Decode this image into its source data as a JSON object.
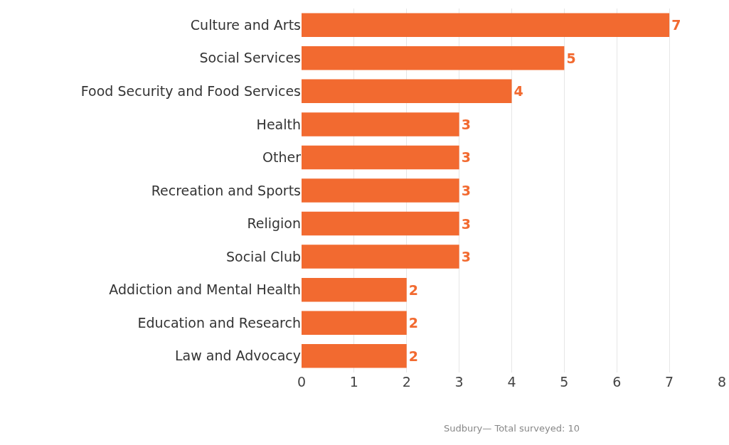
{
  "chart_data": {
    "type": "bar",
    "orientation": "horizontal",
    "categories": [
      "Culture and Arts",
      "Social Services",
      "Food Security and Food Services",
      "Health",
      "Other",
      "Recreation and Sports",
      "Religion",
      "Social Club",
      "Addiction and Mental Health",
      "Education and Research",
      "Law and Advocacy"
    ],
    "values": [
      7,
      5,
      4,
      3,
      3,
      3,
      3,
      3,
      2,
      2,
      2
    ],
    "color": "#f26a30",
    "xlim": [
      0,
      8
    ],
    "xticks": [
      0,
      1,
      2,
      3,
      4,
      5,
      6,
      7,
      8
    ],
    "grid": "x",
    "data_labels": true,
    "annotations": [
      "Sudbury— Total surveyed: 10"
    ]
  }
}
